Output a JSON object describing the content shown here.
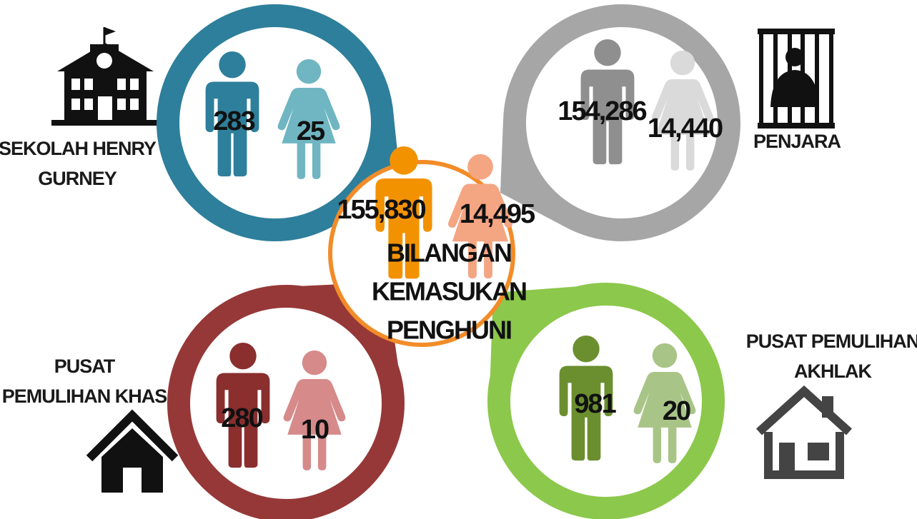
{
  "center": {
    "title_lines": [
      "BILANGAN",
      "KEMASUKAN",
      "PENGHUNI"
    ],
    "male": "155,830",
    "female": "14,495"
  },
  "groups": [
    {
      "label_lines": [
        "SEKOLAH HENRY",
        "GURNEY"
      ],
      "male": "283",
      "female": "25"
    },
    {
      "label_lines": [
        "PENJARA"
      ],
      "male": "154,286",
      "female": "14,440"
    },
    {
      "label_lines": [
        "PUSAT",
        "PEMULIHAN KHAS"
      ],
      "male": "280",
      "female": "10"
    },
    {
      "label_lines": [
        "PUSAT PEMULIHAN",
        "AKHLAK"
      ],
      "male": "981",
      "female": "20"
    }
  ]
}
